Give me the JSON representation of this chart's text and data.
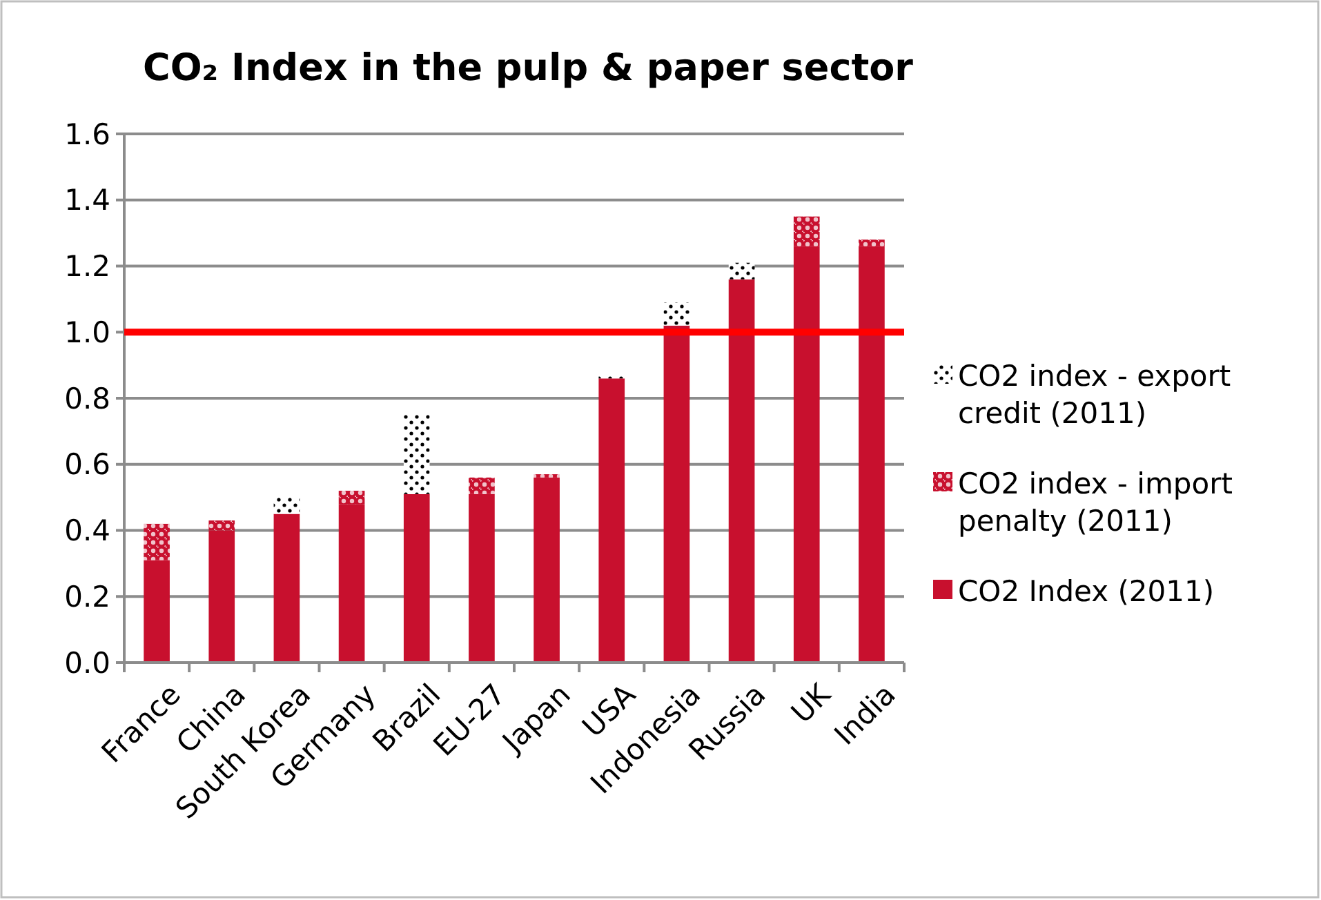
{
  "chart_data": {
    "type": "bar",
    "title": "CO₂ Index in the pulp & paper sector",
    "stacked": true,
    "categories": [
      "France",
      "China",
      "South Korea",
      "Germany",
      "Brazil",
      "EU-27",
      "Japan",
      "USA",
      "Indonesia",
      "Russia",
      "UK",
      "India"
    ],
    "series": [
      {
        "name": "CO2 Index (2011)",
        "color": "#c8102e",
        "values": [
          0.31,
          0.4,
          0.45,
          0.48,
          0.51,
          0.51,
          0.56,
          0.86,
          1.02,
          1.16,
          1.26,
          1.26
        ]
      },
      {
        "name": "CO2 index - import penalty (2011)",
        "color": "#c8102e",
        "values": [
          0.11,
          0.03,
          null,
          0.04,
          null,
          0.05,
          0.01,
          null,
          null,
          null,
          0.09,
          0.02
        ]
      },
      {
        "name": "CO2 index - export credit (2011)",
        "color": "#000000",
        "values": [
          null,
          null,
          0.05,
          null,
          0.24,
          null,
          null,
          0.01,
          0.07,
          0.05,
          null,
          null
        ]
      }
    ],
    "ylim": [
      0,
      1.6
    ],
    "yticks": [
      {
        "value": 0,
        "label": "0.0"
      },
      {
        "value": 0.2,
        "label": "0.2"
      },
      {
        "value": 0.4,
        "label": "0.4"
      },
      {
        "value": 0.6,
        "label": "0.6"
      },
      {
        "value": 0.8,
        "label": "0.8"
      },
      {
        "value": 1,
        "label": "1.0"
      },
      {
        "value": 1.2,
        "label": "1.2"
      },
      {
        "value": 1.4,
        "label": "1.4"
      },
      {
        "value": 1.6,
        "label": "1.6"
      }
    ],
    "grid": "y",
    "legend": "right",
    "ref_lines": [
      {
        "axis": "y",
        "value": 1,
        "color": "#ff0000"
      }
    ]
  }
}
